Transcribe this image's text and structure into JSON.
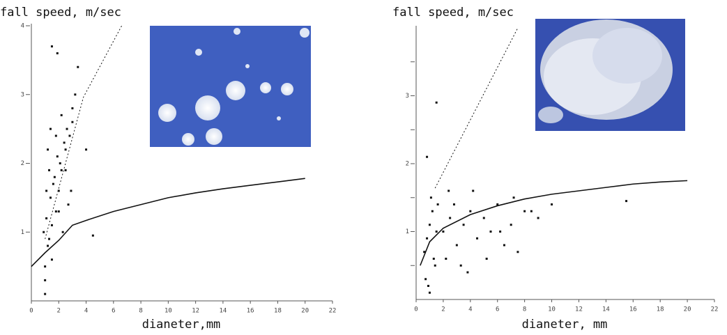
{
  "chart_data": [
    {
      "type": "scatter",
      "title": "fall speed, m/sec",
      "x_label": "dianeter,mm",
      "xlim": [
        0,
        22
      ],
      "ylim": [
        0,
        4
      ],
      "xticks": [
        0,
        2,
        4,
        6,
        8,
        10,
        12,
        14,
        16,
        18,
        20,
        22
      ],
      "yticks": [
        1,
        2,
        3,
        4
      ],
      "color": "#111111",
      "points": {
        "x": [
          1,
          1.2,
          1.5,
          1.8,
          2,
          2.2,
          2.5,
          2.8,
          3,
          1.1,
          1.4,
          1.7,
          2.1,
          2.4,
          2.7,
          1.3,
          1.6,
          1.9,
          2.3,
          2.6,
          1,
          1.5,
          2,
          2.5,
          3,
          1.2,
          1.8,
          2.2,
          0.9,
          1.1,
          1.3,
          1.4,
          3.4,
          4,
          4.5,
          1.5,
          1.9,
          3.2,
          2.9,
          1
        ],
        "y": [
          0.5,
          0.8,
          1.1,
          1.3,
          1.6,
          1.9,
          2.2,
          2.4,
          2.6,
          1.2,
          1.5,
          1.8,
          2.0,
          2.3,
          1.4,
          0.9,
          1.7,
          2.1,
          1.0,
          2.5,
          0.3,
          0.6,
          1.3,
          1.9,
          2.8,
          2.2,
          2.4,
          2.7,
          1.0,
          1.6,
          1.9,
          2.5,
          3.4,
          2.2,
          0.95,
          3.7,
          3.6,
          3.0,
          1.6,
          0.1
        ]
      },
      "curves": [
        {
          "x": [
            0,
            1,
            2,
            3,
            4,
            6,
            8,
            10,
            12,
            14,
            16,
            18,
            20
          ],
          "y": [
            0.5,
            0.7,
            0.88,
            1.1,
            1.17,
            1.3,
            1.4,
            1.5,
            1.57,
            1.63,
            1.68,
            1.73,
            1.78
          ],
          "dash": false
        },
        {
          "x": [
            1,
            3.8,
            6.6
          ],
          "y": [
            0.9,
            2.96,
            4
          ],
          "dash": true
        }
      ]
    },
    {
      "type": "scatter",
      "title": "fall speed, m/sec",
      "x_label": "dianeter, mm",
      "xlim": [
        0,
        22
      ],
      "ylim": [
        0,
        4
      ],
      "xticks": [
        0,
        2,
        4,
        6,
        8,
        10,
        12,
        14,
        16,
        18,
        20,
        22
      ],
      "yticks": [
        1,
        2,
        3
      ],
      "yminor_ticks": [
        0.5,
        1.5,
        2.5,
        3.5
      ],
      "color": "#111111",
      "points": {
        "x": [
          0.6,
          0.8,
          1,
          1.2,
          1.4,
          1.6,
          2,
          2.5,
          3,
          3.5,
          4,
          4.5,
          5,
          5.5,
          6,
          6.5,
          7,
          7.5,
          8,
          9,
          10,
          0.7,
          0.9,
          1.1,
          1.3,
          1.5,
          2.2,
          2.8,
          3.3,
          4.2,
          5.2,
          6.2,
          7.2,
          8.5,
          15.5,
          1.5,
          0.8,
          1,
          2.4,
          3.8
        ],
        "y": [
          0.7,
          0.9,
          1.1,
          1.3,
          0.5,
          1.4,
          1.0,
          1.2,
          0.8,
          1.1,
          1.3,
          0.9,
          1.2,
          1.0,
          1.4,
          0.8,
          1.1,
          0.7,
          1.3,
          1.2,
          1.4,
          0.3,
          0.2,
          1.5,
          0.6,
          1.0,
          0.6,
          1.4,
          0.5,
          1.6,
          0.6,
          1.0,
          1.5,
          1.3,
          1.45,
          2.9,
          2.1,
          0.1,
          1.6,
          0.4
        ]
      },
      "curves": [
        {
          "x": [
            0.3,
            1,
            2,
            4,
            6,
            8,
            10,
            12,
            14,
            16,
            18,
            20
          ],
          "y": [
            0.5,
            0.85,
            1.05,
            1.25,
            1.38,
            1.48,
            1.55,
            1.6,
            1.65,
            1.7,
            1.73,
            1.75
          ],
          "dash": false
        },
        {
          "x": [
            1.4,
            7.5
          ],
          "y": [
            1.64,
            4
          ],
          "dash": true
        }
      ]
    }
  ]
}
